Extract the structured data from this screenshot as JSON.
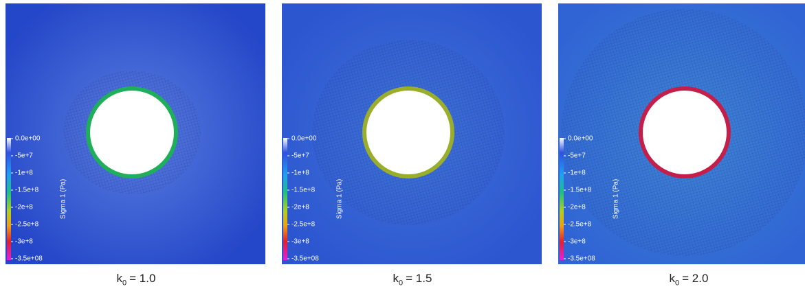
{
  "panels": [
    {
      "caption": {
        "symbol": "k",
        "subscript": "0",
        "text": "= 1.0"
      },
      "colorbar": {
        "title": "Sigma 1 (Pa)",
        "ticks": [
          "0.0e+00",
          "-5e+7",
          "-1e+8",
          "-1.5e+8",
          "-2e+8",
          "-2.5e+8",
          "-3e+8",
          "-3.5e+08"
        ]
      },
      "ring_color": "#1fae5a",
      "field_color": "#2446c8",
      "halo_color": "#5a7ee0"
    },
    {
      "caption": {
        "symbol": "k",
        "subscript": "0",
        "text": "= 1.5"
      },
      "colorbar": {
        "title": "Sigma 1 (Pa)",
        "ticks": [
          "0.0e+00",
          "-5e+7",
          "-1e+8",
          "-1.5e+8",
          "-2e+8",
          "-2.5e+8",
          "-3e+8",
          "-3.5e+08"
        ]
      },
      "ring_color": "#9aae2c",
      "field_color": "#2c55d0",
      "halo_color": "#3f74d8"
    },
    {
      "caption": {
        "symbol": "k",
        "subscript": "0",
        "text": "= 2.0"
      },
      "colorbar": {
        "title": "Sigma 1 (Pa)",
        "ticks": [
          "0.0e+00",
          "-5e+7",
          "-1e+8",
          "-1.5e+8",
          "-2e+8",
          "-2.5e+8",
          "-3e+8",
          "-3.5e+08"
        ]
      },
      "ring_color": "#c41e4a",
      "field_color": "#3064d4",
      "halo_color": "#3f86d6"
    }
  ]
}
